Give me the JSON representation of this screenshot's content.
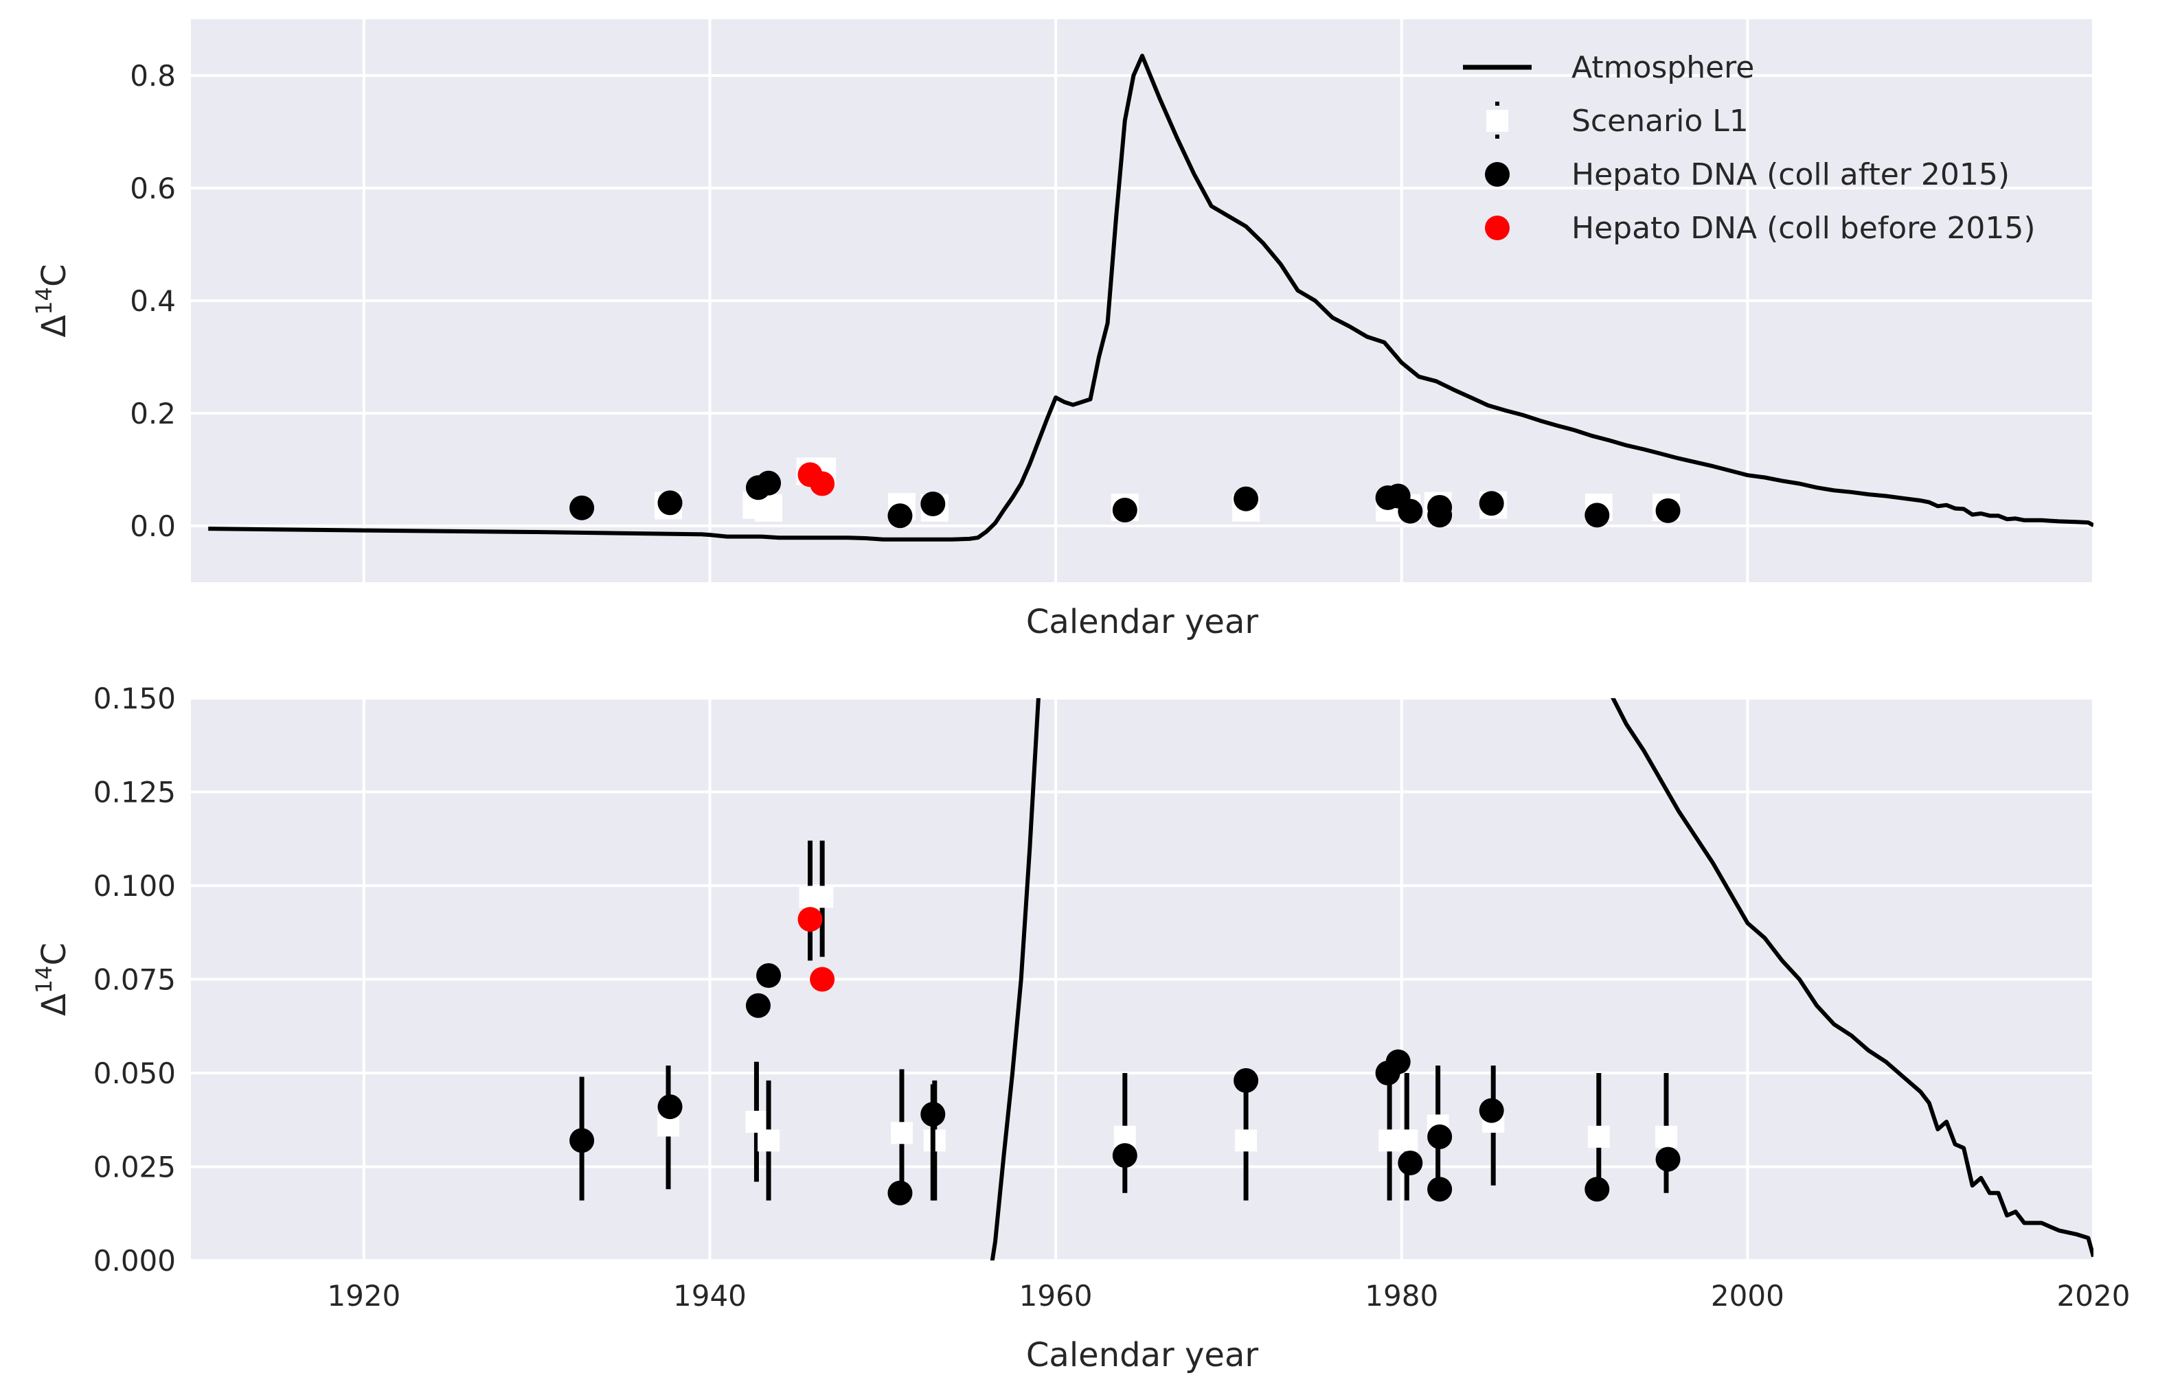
{
  "chart_data": [
    {
      "type": "line+scatter",
      "xlabel": "Calendar year",
      "ylabel_base": "Δ",
      "ylabel_sup": "14",
      "ylabel_tail": "C",
      "xlim": [
        1910,
        2020
      ],
      "ylim": [
        -0.1,
        0.9
      ],
      "yticks": [
        "0.0",
        "0.2",
        "0.4",
        "0.6",
        "0.8"
      ],
      "ytick_values": [
        0.0,
        0.2,
        0.4,
        0.6,
        0.8
      ],
      "grid": true,
      "background": "#eaeaf2",
      "legend": {
        "placement": "top-right",
        "entries": [
          {
            "label": "Atmosphere",
            "kind": "line",
            "color": "#000000"
          },
          {
            "label": "Scenario L1",
            "kind": "square",
            "color": "#ffffff"
          },
          {
            "label": "Hepato DNA (coll after 2015)",
            "kind": "circle",
            "color": "#000000"
          },
          {
            "label": "Hepato DNA (coll before 2015)",
            "kind": "circle",
            "color": "#ff0000"
          }
        ]
      }
    },
    {
      "type": "line+scatter",
      "xlabel": "Calendar year",
      "ylabel_base": "Δ",
      "ylabel_sup": "14",
      "ylabel_tail": "C",
      "xlim": [
        1910,
        2020
      ],
      "ylim": [
        0.0,
        0.15
      ],
      "xticks": [
        "1920",
        "1940",
        "1960",
        "1980",
        "2000",
        "2020"
      ],
      "xtick_values": [
        1920,
        1940,
        1960,
        1980,
        2000,
        2020
      ],
      "yticks": [
        "0.000",
        "0.025",
        "0.050",
        "0.075",
        "0.100",
        "0.125",
        "0.150"
      ],
      "ytick_values": [
        0.0,
        0.025,
        0.05,
        0.075,
        0.1,
        0.125,
        0.15
      ],
      "grid": true,
      "background": "#eaeaf2"
    }
  ],
  "series": {
    "atmosphere": {
      "name": "Atmosphere",
      "color": "#000000",
      "x": [
        1911,
        1920,
        1930,
        1939.5,
        1940,
        1941,
        1942,
        1943,
        1944,
        1945,
        1946,
        1947,
        1948,
        1949,
        1950,
        1951,
        1952,
        1953,
        1954,
        1955,
        1955.5,
        1956,
        1956.5,
        1957,
        1957.5,
        1958,
        1958.5,
        1959,
        1959.5,
        1960,
        1960.5,
        1961,
        1961.5,
        1962,
        1962.5,
        1963,
        1963.5,
        1964,
        1964.5,
        1965,
        1966,
        1967,
        1968,
        1969,
        1970,
        1971,
        1972,
        1973,
        1974,
        1975,
        1976,
        1977,
        1978,
        1979,
        1980,
        1981,
        1982,
        1983,
        1984,
        1985,
        1986,
        1987,
        1988,
        1989,
        1990,
        1991,
        1992,
        1993,
        1994,
        1995,
        1996,
        1997,
        1998,
        1999,
        2000,
        2001,
        2002,
        2003,
        2004,
        2005,
        2006,
        2007,
        2008,
        2009,
        2010,
        2010.5,
        2011,
        2011.5,
        2012,
        2012.5,
        2013,
        2013.5,
        2014,
        2014.5,
        2015,
        2015.5,
        2016,
        2016.5,
        2017,
        2017.5,
        2018,
        2019,
        2019.7,
        2020
      ],
      "y": [
        -0.005,
        -0.008,
        -0.011,
        -0.015,
        -0.016,
        -0.019,
        -0.019,
        -0.019,
        -0.021,
        -0.021,
        -0.021,
        -0.021,
        -0.021,
        -0.022,
        -0.024,
        -0.024,
        -0.024,
        -0.024,
        -0.024,
        -0.023,
        -0.021,
        -0.01,
        0.005,
        0.028,
        0.05,
        0.075,
        0.11,
        0.15,
        0.19,
        0.228,
        0.22,
        0.215,
        0.22,
        0.225,
        0.3,
        0.36,
        0.55,
        0.72,
        0.8,
        0.835,
        0.76,
        0.69,
        0.625,
        0.568,
        0.55,
        0.532,
        0.502,
        0.465,
        0.418,
        0.4,
        0.37,
        0.354,
        0.336,
        0.326,
        0.29,
        0.265,
        0.257,
        0.242,
        0.228,
        0.214,
        0.205,
        0.197,
        0.187,
        0.178,
        0.17,
        0.16,
        0.152,
        0.143,
        0.136,
        0.128,
        0.12,
        0.113,
        0.106,
        0.098,
        0.09,
        0.086,
        0.08,
        0.075,
        0.068,
        0.063,
        0.06,
        0.056,
        0.053,
        0.049,
        0.045,
        0.042,
        0.035,
        0.037,
        0.031,
        0.03,
        0.02,
        0.022,
        0.018,
        0.018,
        0.012,
        0.013,
        0.01,
        0.01,
        0.01,
        0.009,
        0.008,
        0.007,
        0.006,
        0.001
      ]
    },
    "scenario_l1": {
      "name": "Scenario L1",
      "color": "#ffffff",
      "x": [
        1937.6,
        1942.7,
        1943.4,
        1945.8,
        1946.5,
        1951.1,
        1953.0,
        1964.0,
        1971.0,
        1979.3,
        1980.3,
        1982.1,
        1985.3,
        1991.4,
        1995.3
      ],
      "y": [
        0.036,
        0.037,
        0.032,
        0.097,
        0.097,
        0.034,
        0.032,
        0.033,
        0.032,
        0.032,
        0.032,
        0.036,
        0.037,
        0.033,
        0.033
      ],
      "err_lo": [
        0.019,
        0.021,
        0.016,
        0.08,
        0.081,
        0.017,
        0.016,
        0.018,
        0.016,
        0.016,
        0.016,
        0.02,
        0.02,
        0.017,
        0.018
      ],
      "err_hi": [
        0.052,
        0.053,
        0.048,
        0.112,
        0.112,
        0.051,
        0.048,
        0.05,
        0.049,
        0.049,
        0.05,
        0.052,
        0.052,
        0.05,
        0.05
      ]
    },
    "hepato_after": {
      "name": "Hepato DNA (coll after 2015)",
      "color": "#000000",
      "x": [
        1932.6,
        1937.7,
        1942.8,
        1943.4,
        1951.0,
        1952.9,
        1964.0,
        1971.0,
        1979.2,
        1979.8,
        1980.5,
        1982.2,
        1982.2,
        1985.2,
        1991.3,
        1995.4
      ],
      "y": [
        0.032,
        0.041,
        0.068,
        0.076,
        0.018,
        0.039,
        0.028,
        0.048,
        0.05,
        0.053,
        0.026,
        0.033,
        0.019,
        0.04,
        0.019,
        0.027
      ],
      "err_lo": [
        0.016,
        null,
        null,
        null,
        null,
        0.016,
        null,
        null,
        null,
        null,
        null,
        null,
        null,
        null,
        null,
        null
      ],
      "err_hi": [
        0.049,
        null,
        null,
        null,
        null,
        0.047,
        null,
        null,
        null,
        null,
        null,
        null,
        null,
        null,
        null,
        null
      ]
    },
    "hepato_before": {
      "name": "Hepato DNA (coll before 2015)",
      "color": "#ff0000",
      "x": [
        1945.8,
        1946.5
      ],
      "y": [
        0.091,
        0.075
      ]
    }
  }
}
